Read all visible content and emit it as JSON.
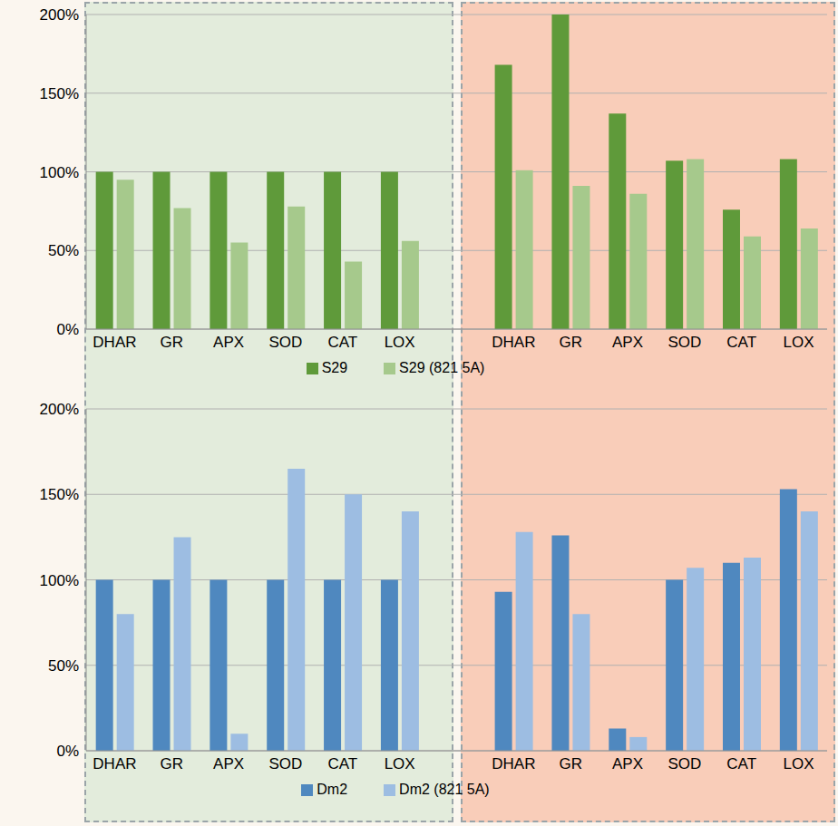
{
  "chart_data": [
    {
      "type": "bar",
      "categories": [
        "DHAR",
        "GR",
        "APX",
        "SOD",
        "CAT",
        "LOX",
        null,
        "DHAR",
        "GR",
        "APX",
        "SOD",
        "CAT",
        "LOX"
      ],
      "series": [
        {
          "name": "S29",
          "color": "#5f9a3a",
          "values": [
            100,
            100,
            100,
            100,
            100,
            100,
            null,
            168,
            200,
            137,
            107,
            76,
            108
          ]
        },
        {
          "name": "S29 (821 5A)",
          "color": "#a6c98c",
          "values": [
            95,
            77,
            55,
            78,
            43,
            56,
            null,
            101,
            91,
            86,
            108,
            59,
            64
          ]
        }
      ],
      "ylim": [
        0,
        200
      ],
      "yticks": [
        {
          "value": 0,
          "label": "0%"
        },
        {
          "value": 50,
          "label": "50%"
        },
        {
          "value": 100,
          "label": "100%"
        },
        {
          "value": 150,
          "label": "150%"
        },
        {
          "value": 200,
          "label": "200%"
        }
      ],
      "grid": true,
      "legend": "bottom"
    },
    {
      "type": "bar",
      "categories": [
        "DHAR",
        "GR",
        "APX",
        "SOD",
        "CAT",
        "LOX",
        null,
        "DHAR",
        "GR",
        "APX",
        "SOD",
        "CAT",
        "LOX"
      ],
      "series": [
        {
          "name": "Dm2",
          "color": "#4f88bf",
          "values": [
            100,
            100,
            100,
            100,
            100,
            100,
            null,
            93,
            126,
            13,
            100,
            110,
            153
          ]
        },
        {
          "name": "Dm2 (821 5A)",
          "color": "#9dbde2",
          "values": [
            80,
            125,
            10,
            165,
            150,
            140,
            null,
            128,
            80,
            8,
            107,
            113,
            140
          ]
        }
      ],
      "ylim": [
        0,
        200
      ],
      "yticks": [
        {
          "value": 0,
          "label": "0%"
        },
        {
          "value": 50,
          "label": "50%"
        },
        {
          "value": 100,
          "label": "100%"
        },
        {
          "value": 150,
          "label": "150%"
        },
        {
          "value": 200,
          "label": "200%"
        }
      ],
      "grid": true,
      "legend": "bottom"
    }
  ]
}
